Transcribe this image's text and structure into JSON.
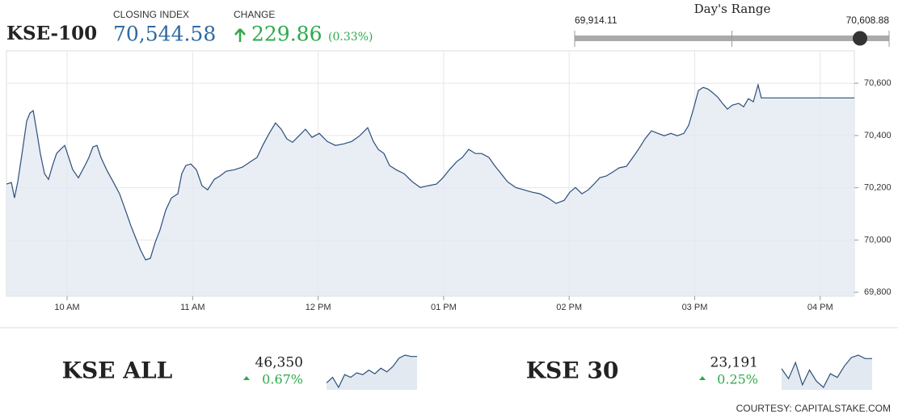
{
  "header": {
    "title": "KSE-100",
    "closing_label": "CLOSING INDEX",
    "closing_value": "70,544.58",
    "change_label": "CHANGE",
    "change_value": "229.86",
    "change_percent": "(0.33%)"
  },
  "day_range": {
    "title": "Day's Range",
    "low": {
      "value": 69914.11,
      "label": "69,914.11"
    },
    "high": {
      "value": 70608.88,
      "label": "70,608.88"
    },
    "current": 70544.58
  },
  "chart_data": [
    {
      "type": "line",
      "color": "#2b4f7a",
      "area_color": "#e3e9f1",
      "x": [
        9.517,
        9.556,
        9.581,
        9.607,
        9.646,
        9.678,
        9.704,
        9.73,
        9.755,
        9.787,
        9.82,
        9.852,
        9.884,
        9.916,
        9.948,
        9.981,
        10.013,
        10.045,
        10.09,
        10.142,
        10.174,
        10.206,
        10.238,
        10.27,
        10.315,
        10.367,
        10.418,
        10.464,
        10.509,
        10.547,
        10.586,
        10.625,
        10.663,
        10.702,
        10.74,
        10.786,
        10.831,
        10.882,
        10.914,
        10.946,
        10.985,
        11.03,
        11.075,
        11.12,
        11.172,
        11.217,
        11.268,
        11.333,
        11.397,
        11.462,
        11.513,
        11.558,
        11.61,
        11.661,
        11.706,
        11.751,
        11.796,
        11.848,
        11.899,
        11.951,
        12.009,
        12.073,
        12.138,
        12.202,
        12.267,
        12.331,
        12.395,
        12.44,
        12.479,
        12.524,
        12.569,
        12.621,
        12.685,
        12.75,
        12.814,
        12.878,
        12.943,
        12.994,
        13.046,
        13.104,
        13.149,
        13.2,
        13.252,
        13.303,
        13.361,
        13.406,
        13.458,
        13.509,
        13.574,
        13.638,
        13.703,
        13.767,
        13.831,
        13.896,
        13.96,
        14.005,
        14.05,
        14.102,
        14.153,
        14.198,
        14.243,
        14.295,
        14.346,
        14.398,
        14.456,
        14.507,
        14.552,
        14.604,
        14.655,
        14.707,
        14.758,
        14.81,
        14.861,
        14.913,
        14.952,
        14.99,
        15.029,
        15.068,
        15.106,
        15.145,
        15.183,
        15.222,
        15.261,
        15.299,
        15.351,
        15.39,
        15.428,
        15.467,
        15.505,
        15.531,
        16.272
      ],
      "values": [
        70214,
        70220,
        70161,
        70223,
        70347,
        70455,
        70486,
        70495,
        70424,
        70331,
        70254,
        70232,
        70285,
        70331,
        70347,
        70362,
        70316,
        70269,
        70238,
        70285,
        70316,
        70356,
        70362,
        70316,
        70269,
        70223,
        70177,
        70115,
        70053,
        70007,
        69961,
        69924,
        69930,
        69991,
        70038,
        70115,
        70161,
        70177,
        70254,
        70285,
        70291,
        70269,
        70208,
        70192,
        70232,
        70245,
        70263,
        70269,
        70279,
        70300,
        70316,
        70362,
        70408,
        70448,
        70424,
        70387,
        70374,
        70399,
        70424,
        70393,
        70408,
        70377,
        70362,
        70368,
        70377,
        70399,
        70430,
        70377,
        70347,
        70331,
        70285,
        70269,
        70254,
        70223,
        70201,
        70208,
        70214,
        70238,
        70269,
        70300,
        70316,
        70347,
        70331,
        70331,
        70316,
        70285,
        70254,
        70223,
        70201,
        70192,
        70183,
        70177,
        70161,
        70140,
        70152,
        70183,
        70201,
        70177,
        70192,
        70214,
        70238,
        70245,
        70260,
        70276,
        70282,
        70316,
        70347,
        70387,
        70418,
        70408,
        70399,
        70408,
        70399,
        70408,
        70439,
        70501,
        70572,
        70584,
        70578,
        70563,
        70547,
        70523,
        70501,
        70516,
        70523,
        70510,
        70541,
        70529,
        70594,
        70544,
        70544
      ],
      "xlim": [
        9.517,
        16.272
      ],
      "xticks": [
        {
          "value": 10,
          "label": "10 AM"
        },
        {
          "value": 11,
          "label": "11 AM"
        },
        {
          "value": 12,
          "label": "12 PM"
        },
        {
          "value": 13,
          "label": "01 PM"
        },
        {
          "value": 14,
          "label": "02 PM"
        },
        {
          "value": 15,
          "label": "03 PM"
        },
        {
          "value": 16,
          "label": "04 PM"
        }
      ],
      "ylim": [
        69785,
        70724
      ],
      "yticks": [
        {
          "value": 69800,
          "label": "69,800"
        },
        {
          "value": 70000,
          "label": "70,000"
        },
        {
          "value": 70200,
          "label": "70,200"
        },
        {
          "value": 70400,
          "label": "70,400"
        },
        {
          "value": 70600,
          "label": "70,600"
        }
      ],
      "grid": true
    },
    {
      "type": "sparkline",
      "title": "KSE ALL",
      "value_text": "46,350",
      "change_text": "0.67%",
      "color": "#2b4f7a",
      "area_color": "#e3e9f1",
      "values": [
        46060,
        46120,
        46010,
        46150,
        46120,
        46170,
        46150,
        46200,
        46160,
        46220,
        46180,
        46240,
        46330,
        46365,
        46350,
        46350
      ]
    },
    {
      "type": "sparkline",
      "title": "KSE 30",
      "value_text": "23,191",
      "change_text": "0.25%",
      "color": "#2b4f7a",
      "area_color": "#e3e9f1",
      "values": [
        23150,
        23110,
        23175,
        23085,
        23145,
        23100,
        23075,
        23130,
        23115,
        23160,
        23195,
        23205,
        23191,
        23191
      ]
    }
  ],
  "footer": "COURTESY: CAPITALSTAKE.COM"
}
